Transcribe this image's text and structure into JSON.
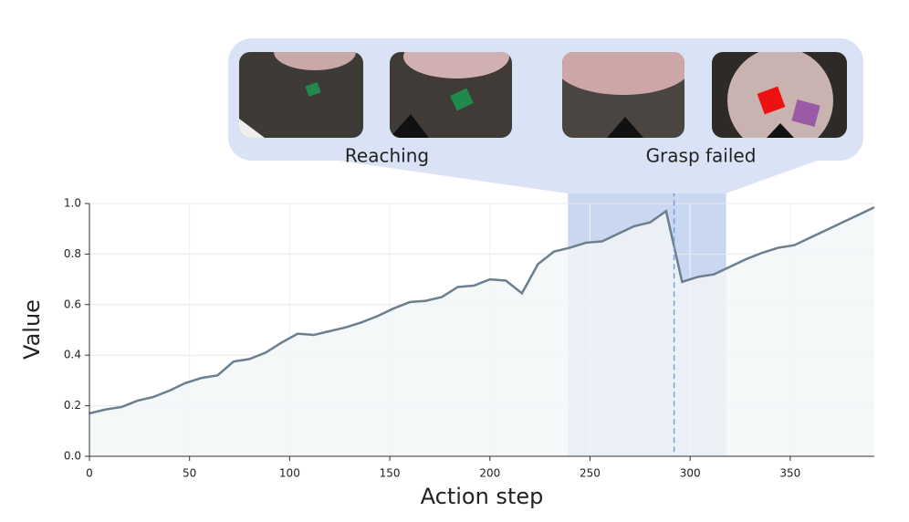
{
  "chart_data": {
    "type": "line",
    "x_label": "Action step",
    "y_label": "Value",
    "x": [
      0,
      8,
      16,
      24,
      32,
      40,
      48,
      56,
      64,
      72,
      80,
      88,
      96,
      104,
      112,
      120,
      128,
      136,
      144,
      152,
      160,
      168,
      176,
      184,
      192,
      200,
      208,
      216,
      224,
      232,
      240,
      248,
      256,
      264,
      272,
      280,
      288,
      296,
      304,
      312,
      320,
      328,
      336,
      344,
      352,
      360,
      368,
      376,
      384,
      392
    ],
    "series": [
      {
        "color": "#6b7f8e",
        "values": [
          0.17,
          0.185,
          0.195,
          0.22,
          0.235,
          0.26,
          0.29,
          0.31,
          0.32,
          0.375,
          0.385,
          0.41,
          0.45,
          0.485,
          0.48,
          0.495,
          0.51,
          0.53,
          0.555,
          0.585,
          0.61,
          0.615,
          0.63,
          0.67,
          0.675,
          0.7,
          0.695,
          0.645,
          0.76,
          0.81,
          0.825,
          0.845,
          0.85,
          0.88,
          0.91,
          0.925,
          0.97,
          0.69,
          0.71,
          0.72,
          0.75,
          0.78,
          0.805,
          0.825,
          0.835,
          0.865,
          0.895,
          0.925,
          0.955,
          0.985
        ]
      }
    ],
    "xlim": [
      0,
      392
    ],
    "ylim": [
      0,
      1
    ],
    "xticks": [
      0,
      50,
      100,
      150,
      200,
      250,
      300,
      350
    ],
    "yticks": [
      {
        "value": 0,
        "label": "0.0"
      },
      0.2,
      0.4,
      0.6,
      0.8,
      {
        "value": 1,
        "label": "1.0"
      }
    ],
    "grid": true,
    "highlight_span": [
      239,
      318
    ],
    "event_marker": 292,
    "annotations": [
      "Reaching",
      "Grasp failed"
    ]
  }
}
